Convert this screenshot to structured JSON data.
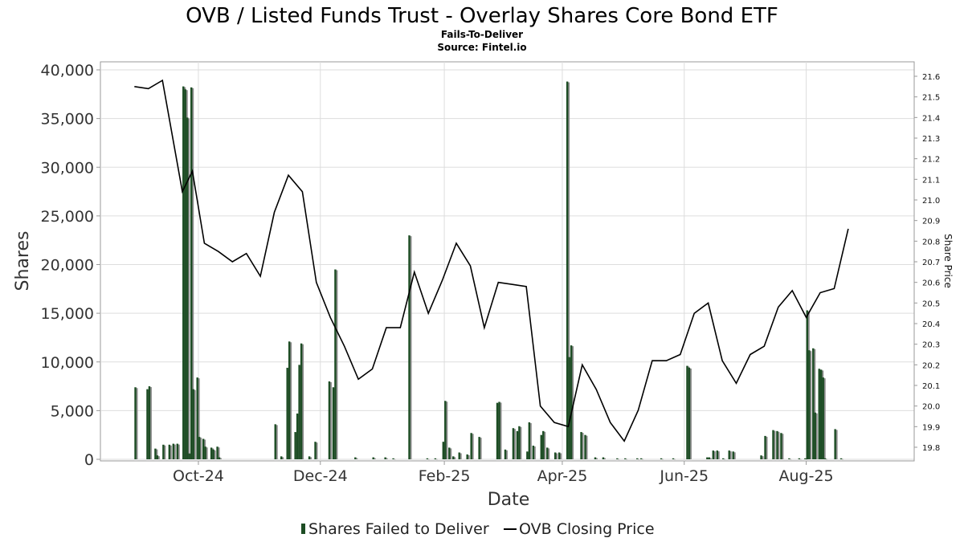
{
  "chart_data": {
    "type": "bar",
    "title": "OVB / Listed Funds Trust - Overlay Shares Core Bond ETF",
    "subtitles": [
      "Fails-To-Deliver",
      "Source: Fintel.io"
    ],
    "xlabel": "Date",
    "ylabel": "Shares",
    "y2label": "Share Price",
    "ylim": [
      0,
      40000
    ],
    "y2lim": [
      19.75,
      21.65
    ],
    "yticks": [
      "0",
      "5,000",
      "10,000",
      "15,000",
      "20,000",
      "25,000",
      "30,000",
      "35,000",
      "40,000"
    ],
    "y2ticks": [
      "19.8",
      "19.9",
      "20.0",
      "20.1",
      "20.2",
      "20.3",
      "20.4",
      "20.5",
      "20.6",
      "20.7",
      "20.8",
      "20.9",
      "21.0",
      "21.1",
      "21.2",
      "21.3",
      "21.4",
      "21.5",
      "21.6"
    ],
    "xticks": [
      {
        "date": "2024-10-01",
        "label": "Oct-24"
      },
      {
        "date": "2024-12-01",
        "label": "Dec-24"
      },
      {
        "date": "2025-02-01",
        "label": "Feb-25"
      },
      {
        "date": "2025-04-01",
        "label": "Apr-25"
      },
      {
        "date": "2025-06-01",
        "label": "Jun-25"
      },
      {
        "date": "2025-08-01",
        "label": "Aug-25"
      }
    ],
    "xrange": [
      "2024-08-13",
      "2025-09-24"
    ],
    "grid": true,
    "legend_position": "bottom-center",
    "colors": {
      "bar": "#1d4d24",
      "bar_shadow": "#8c8c8c",
      "line": "#000000",
      "grid": "#dddddd"
    },
    "series": [
      {
        "name": "Shares Failed to Deliver",
        "kind": "bar",
        "points": [
          [
            "2024-08-30",
            7400
          ],
          [
            "2024-09-05",
            7200
          ],
          [
            "2024-09-06",
            7500
          ],
          [
            "2024-09-09",
            1100
          ],
          [
            "2024-09-10",
            400
          ],
          [
            "2024-09-13",
            1500
          ],
          [
            "2024-09-16",
            1500
          ],
          [
            "2024-09-18",
            1600
          ],
          [
            "2024-09-20",
            1600
          ],
          [
            "2024-09-23",
            38300
          ],
          [
            "2024-09-24",
            38000
          ],
          [
            "2024-09-25",
            35100
          ],
          [
            "2024-09-26",
            600
          ],
          [
            "2024-09-27",
            38200
          ],
          [
            "2024-09-28",
            7200
          ],
          [
            "2024-09-30",
            8400
          ],
          [
            "2024-10-01",
            2300
          ],
          [
            "2024-10-03",
            2100
          ],
          [
            "2024-10-04",
            1300
          ],
          [
            "2024-10-07",
            1200
          ],
          [
            "2024-10-08",
            1000
          ],
          [
            "2024-10-10",
            1300
          ],
          [
            "2024-10-11",
            200
          ],
          [
            "2024-11-08",
            3600
          ],
          [
            "2024-11-11",
            300
          ],
          [
            "2024-11-14",
            9400
          ],
          [
            "2024-11-15",
            12100
          ],
          [
            "2024-11-18",
            2800
          ],
          [
            "2024-11-19",
            4700
          ],
          [
            "2024-11-20",
            9700
          ],
          [
            "2024-11-21",
            11900
          ],
          [
            "2024-11-25",
            300
          ],
          [
            "2024-11-28",
            1800
          ],
          [
            "2024-12-05",
            8000
          ],
          [
            "2024-12-07",
            7400
          ],
          [
            "2024-12-08",
            19500
          ],
          [
            "2024-12-18",
            200
          ],
          [
            "2024-12-27",
            200
          ],
          [
            "2025-01-02",
            200
          ],
          [
            "2025-01-06",
            100
          ],
          [
            "2025-01-14",
            23000
          ],
          [
            "2025-01-23",
            100
          ],
          [
            "2025-01-27",
            100
          ],
          [
            "2025-01-31",
            1800
          ],
          [
            "2025-02-01",
            6000
          ],
          [
            "2025-02-03",
            1200
          ],
          [
            "2025-02-05",
            300
          ],
          [
            "2025-02-08",
            700
          ],
          [
            "2025-02-12",
            500
          ],
          [
            "2025-02-14",
            2700
          ],
          [
            "2025-02-18",
            2300
          ],
          [
            "2025-02-27",
            5800
          ],
          [
            "2025-02-28",
            5900
          ],
          [
            "2025-03-03",
            1000
          ],
          [
            "2025-03-07",
            3200
          ],
          [
            "2025-03-09",
            2900
          ],
          [
            "2025-03-10",
            3400
          ],
          [
            "2025-03-14",
            800
          ],
          [
            "2025-03-15",
            3800
          ],
          [
            "2025-03-17",
            1400
          ],
          [
            "2025-03-21",
            2500
          ],
          [
            "2025-03-22",
            2900
          ],
          [
            "2025-03-24",
            1200
          ],
          [
            "2025-03-28",
            700
          ],
          [
            "2025-03-30",
            700
          ],
          [
            "2025-04-03",
            38800
          ],
          [
            "2025-04-04",
            10500
          ],
          [
            "2025-04-05",
            11700
          ],
          [
            "2025-04-10",
            2800
          ],
          [
            "2025-04-12",
            2500
          ],
          [
            "2025-04-17",
            200
          ],
          [
            "2025-04-21",
            200
          ],
          [
            "2025-04-28",
            100
          ],
          [
            "2025-05-02",
            100
          ],
          [
            "2025-05-08",
            100
          ],
          [
            "2025-05-10",
            100
          ],
          [
            "2025-05-20",
            100
          ],
          [
            "2025-05-26",
            100
          ],
          [
            "2025-06-02",
            9600
          ],
          [
            "2025-06-03",
            9400
          ],
          [
            "2025-06-12",
            200
          ],
          [
            "2025-06-13",
            200
          ],
          [
            "2025-06-15",
            900
          ],
          [
            "2025-06-17",
            900
          ],
          [
            "2025-06-20",
            100
          ],
          [
            "2025-06-23",
            900
          ],
          [
            "2025-06-25",
            800
          ],
          [
            "2025-07-09",
            400
          ],
          [
            "2025-07-11",
            2400
          ],
          [
            "2025-07-15",
            3000
          ],
          [
            "2025-07-17",
            2900
          ],
          [
            "2025-07-19",
            2700
          ],
          [
            "2025-07-23",
            100
          ],
          [
            "2025-07-28",
            100
          ],
          [
            "2025-07-31",
            100
          ],
          [
            "2025-08-01",
            15300
          ],
          [
            "2025-08-02",
            11200
          ],
          [
            "2025-08-04",
            11400
          ],
          [
            "2025-08-05",
            4800
          ],
          [
            "2025-08-07",
            9300
          ],
          [
            "2025-08-08",
            9200
          ],
          [
            "2025-08-09",
            8400
          ],
          [
            "2025-08-10",
            100
          ],
          [
            "2025-08-15",
            3100
          ],
          [
            "2025-08-18",
            100
          ]
        ]
      },
      {
        "name": "OVB Closing Price",
        "kind": "line",
        "points": [
          [
            "2024-08-30",
            21.55
          ],
          [
            "2024-09-06",
            21.54
          ],
          [
            "2024-09-13",
            21.58
          ],
          [
            "2024-09-23",
            21.04
          ],
          [
            "2024-09-28",
            21.14
          ],
          [
            "2024-10-04",
            20.79
          ],
          [
            "2024-10-11",
            20.75
          ],
          [
            "2024-10-18",
            20.7
          ],
          [
            "2024-10-25",
            20.74
          ],
          [
            "2024-11-01",
            20.63
          ],
          [
            "2024-11-08",
            20.94
          ],
          [
            "2024-11-15",
            21.12
          ],
          [
            "2024-11-22",
            21.04
          ],
          [
            "2024-11-29",
            20.6
          ],
          [
            "2024-12-06",
            20.43
          ],
          [
            "2024-12-13",
            20.29
          ],
          [
            "2024-12-20",
            20.13
          ],
          [
            "2024-12-27",
            20.18
          ],
          [
            "2025-01-03",
            20.38
          ],
          [
            "2025-01-10",
            20.38
          ],
          [
            "2025-01-17",
            20.65
          ],
          [
            "2025-01-24",
            20.45
          ],
          [
            "2025-01-31",
            20.61
          ],
          [
            "2025-02-07",
            20.79
          ],
          [
            "2025-02-14",
            20.68
          ],
          [
            "2025-02-21",
            20.38
          ],
          [
            "2025-02-28",
            20.6
          ],
          [
            "2025-03-07",
            20.59
          ],
          [
            "2025-03-14",
            20.58
          ],
          [
            "2025-03-21",
            20.0
          ],
          [
            "2025-03-28",
            19.92
          ],
          [
            "2025-04-04",
            19.9
          ],
          [
            "2025-04-11",
            20.2
          ],
          [
            "2025-04-18",
            20.08
          ],
          [
            "2025-04-25",
            19.92
          ],
          [
            "2025-05-02",
            19.83
          ],
          [
            "2025-05-09",
            19.98
          ],
          [
            "2025-05-16",
            20.22
          ],
          [
            "2025-05-23",
            20.22
          ],
          [
            "2025-05-30",
            20.25
          ],
          [
            "2025-06-06",
            20.45
          ],
          [
            "2025-06-13",
            20.5
          ],
          [
            "2025-06-20",
            20.22
          ],
          [
            "2025-06-27",
            20.11
          ],
          [
            "2025-07-04",
            20.25
          ],
          [
            "2025-07-11",
            20.29
          ],
          [
            "2025-07-18",
            20.48
          ],
          [
            "2025-07-25",
            20.56
          ],
          [
            "2025-08-01",
            20.43
          ],
          [
            "2025-08-08",
            20.55
          ],
          [
            "2025-08-15",
            20.57
          ],
          [
            "2025-08-22",
            20.86
          ]
        ]
      }
    ]
  }
}
